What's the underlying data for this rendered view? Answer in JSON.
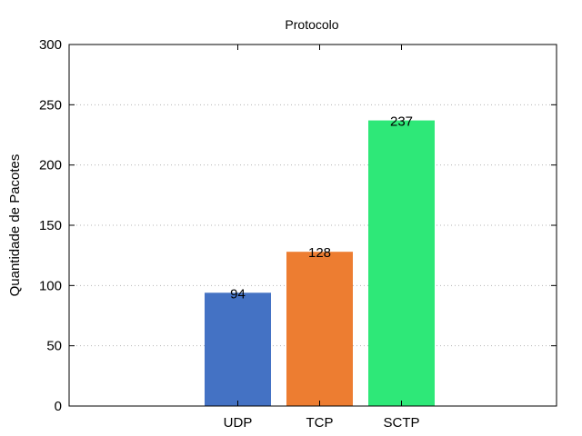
{
  "chart_data": {
    "type": "bar",
    "title": "Protocolo",
    "xlabel": "",
    "ylabel": "Quantidade de Pacotes",
    "categories": [
      "UDP",
      "TCP",
      "SCTP"
    ],
    "values": [
      94,
      128,
      237
    ],
    "colors": [
      "#4472c4",
      "#ed7d31",
      "#2ee878"
    ],
    "ylim": [
      0,
      300
    ],
    "yticks": [
      0,
      50,
      100,
      150,
      200,
      250,
      300
    ],
    "grid": true,
    "data_labels": true
  }
}
